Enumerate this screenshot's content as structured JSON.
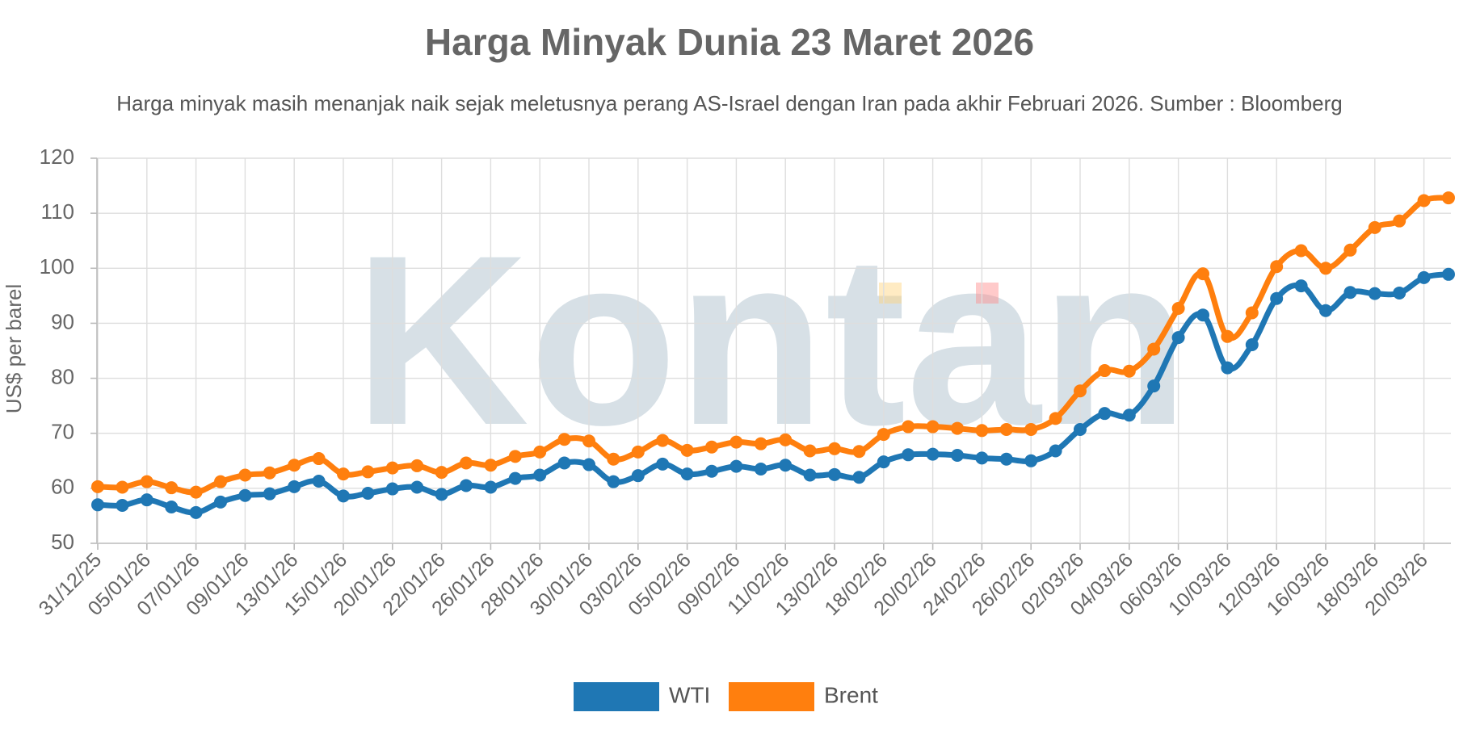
{
  "chart_data": {
    "type": "line",
    "title": "Harga Minyak Dunia 23 Maret 2026",
    "subtitle": "Harga minyak masih menanjak naik sejak meletusnya perang AS-Israel dengan Iran pada akhir Februari 2026. Sumber : Bloomberg",
    "ylabel": "US$ per barel",
    "xlabel": "",
    "ylim": [
      50,
      120
    ],
    "yticks": [
      50,
      60,
      70,
      80,
      90,
      100,
      110,
      120
    ],
    "grid": true,
    "legend_position": "bottom-center",
    "watermark": "Kontan",
    "x_tick_labels": [
      "31/12/25",
      "05/01/26",
      "07/01/26",
      "09/01/26",
      "13/01/26",
      "15/01/26",
      "20/01/26",
      "22/01/26",
      "26/01/26",
      "28/01/26",
      "30/01/26",
      "03/02/26",
      "05/02/26",
      "09/02/26",
      "11/02/26",
      "13/02/26",
      "18/02/26",
      "20/02/26",
      "24/02/26",
      "26/02/26",
      "02/03/26",
      "04/03/26",
      "06/03/26",
      "10/03/26",
      "12/03/26",
      "16/03/26",
      "18/03/26",
      "20/03/26"
    ],
    "x": [
      "31/12/25",
      "02/01/26",
      "05/01/26",
      "06/01/26",
      "07/01/26",
      "08/01/26",
      "09/01/26",
      "12/01/26",
      "13/01/26",
      "14/01/26",
      "15/01/26",
      "16/01/26",
      "20/01/26",
      "21/01/26",
      "22/01/26",
      "23/01/26",
      "26/01/26",
      "27/01/26",
      "28/01/26",
      "29/01/26",
      "30/01/26",
      "02/02/26",
      "03/02/26",
      "04/02/26",
      "05/02/26",
      "06/02/26",
      "09/02/26",
      "10/02/26",
      "11/02/26",
      "12/02/26",
      "13/02/26",
      "17/02/26",
      "18/02/26",
      "19/02/26",
      "20/02/26",
      "23/02/26",
      "24/02/26",
      "25/02/26",
      "26/02/26",
      "27/02/26",
      "02/03/26",
      "03/03/26",
      "04/03/26",
      "05/03/26",
      "06/03/26",
      "09/03/26",
      "10/03/26",
      "11/03/26",
      "12/03/26",
      "13/03/26",
      "16/03/26",
      "17/03/26",
      "18/03/26",
      "19/03/26",
      "20/03/26",
      "23/03/26"
    ],
    "series": [
      {
        "name": "WTI",
        "color": "#1f77b4",
        "values": [
          57.0,
          56.9,
          57.9,
          56.6,
          55.6,
          57.5,
          58.7,
          59.0,
          60.3,
          61.3,
          58.6,
          59.1,
          59.9,
          60.2,
          58.9,
          60.5,
          60.2,
          61.8,
          62.4,
          64.6,
          64.3,
          61.2,
          62.3,
          64.4,
          62.6,
          63.1,
          64.0,
          63.5,
          64.2,
          62.4,
          62.5,
          62.0,
          64.8,
          66.1,
          66.2,
          66.0,
          65.5,
          65.3,
          65.0,
          66.8,
          70.7,
          73.6,
          73.3,
          78.6,
          87.4,
          91.5,
          81.9,
          86.1,
          94.5,
          96.8,
          92.3,
          95.6,
          95.4,
          95.5,
          98.3,
          98.9
        ]
      },
      {
        "name": "Brent",
        "color": "#ff7f0e",
        "values": [
          60.3,
          60.2,
          61.2,
          60.1,
          59.3,
          61.2,
          62.4,
          62.8,
          64.2,
          65.4,
          62.6,
          63.0,
          63.7,
          64.1,
          62.9,
          64.6,
          64.2,
          65.8,
          66.6,
          68.9,
          68.6,
          65.3,
          66.6,
          68.7,
          66.9,
          67.5,
          68.4,
          68.1,
          68.8,
          66.8,
          67.2,
          66.7,
          69.8,
          71.2,
          71.2,
          70.9,
          70.5,
          70.7,
          70.7,
          72.7,
          77.7,
          81.4,
          81.3,
          85.3,
          92.7,
          99.0,
          87.6,
          91.9,
          100.3,
          103.2,
          100.0,
          103.3,
          107.4,
          108.6,
          112.3,
          112.8
        ]
      }
    ]
  }
}
